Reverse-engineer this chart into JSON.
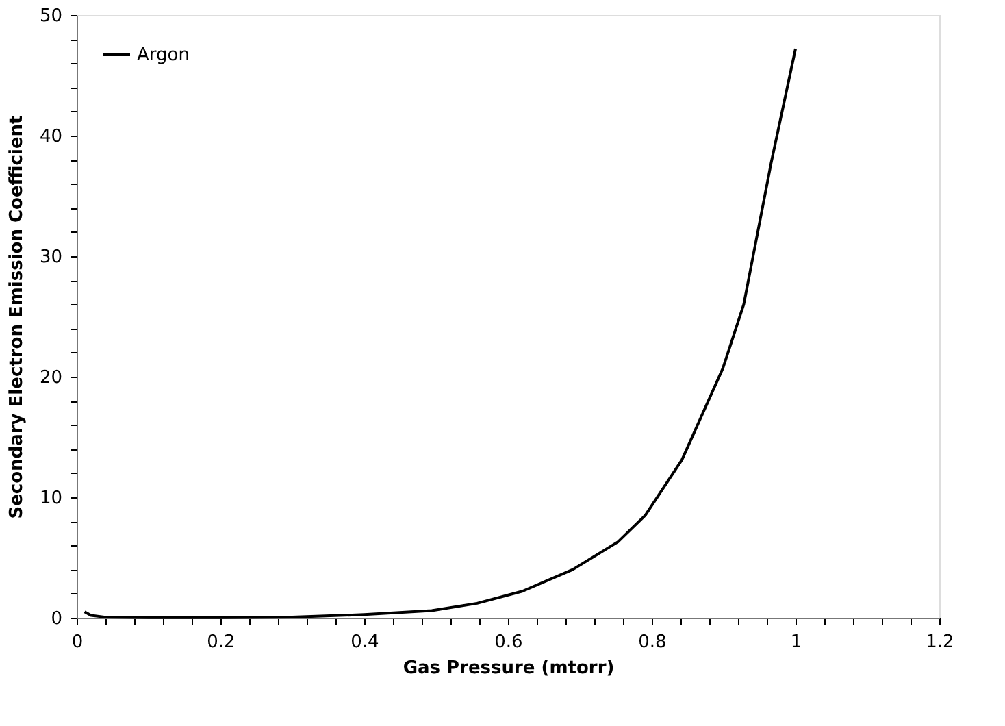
{
  "chart_data": {
    "type": "line",
    "xlabel": "Gas Pressure (mtorr)",
    "ylabel": "Secondary Electron Emission Coefficient",
    "series": [
      {
        "name": "Argon",
        "color": "#000000",
        "x": [
          0.011,
          0.02,
          0.04,
          0.1,
          0.2,
          0.3,
          0.4,
          0.494,
          0.557,
          0.62,
          0.69,
          0.753,
          0.791,
          0.842,
          0.899,
          0.928,
          0.966,
          1.0
        ],
        "values": [
          0.5,
          0.2,
          0.05,
          0.02,
          0.02,
          0.05,
          0.27,
          0.6,
          1.2,
          2.2,
          4.0,
          6.3,
          8.5,
          13.1,
          20.7,
          26,
          37.7,
          47.2
        ]
      }
    ],
    "xlim": [
      0,
      1.2
    ],
    "ylim": [
      0,
      50
    ],
    "xticks": [
      0,
      {
        "value": 0.04,
        "label": null
      },
      {
        "value": 0.08,
        "label": null
      },
      {
        "value": 0.12,
        "label": null
      },
      {
        "value": 0.16,
        "label": null
      },
      0.2,
      {
        "value": 0.24,
        "label": null
      },
      {
        "value": 0.28,
        "label": null
      },
      {
        "value": 0.32,
        "label": null
      },
      {
        "value": 0.36,
        "label": null
      },
      0.4,
      {
        "value": 0.44,
        "label": null
      },
      {
        "value": 0.48,
        "label": null
      },
      {
        "value": 0.52,
        "label": null
      },
      {
        "value": 0.56,
        "label": null
      },
      0.6,
      {
        "value": 0.64,
        "label": null
      },
      {
        "value": 0.68,
        "label": null
      },
      {
        "value": 0.72,
        "label": null
      },
      {
        "value": 0.76,
        "label": null
      },
      0.8,
      {
        "value": 0.84,
        "label": null
      },
      {
        "value": 0.88,
        "label": null
      },
      {
        "value": 0.92,
        "label": null
      },
      {
        "value": 0.96,
        "label": null
      },
      1,
      {
        "value": 1.04,
        "label": null
      },
      {
        "value": 1.08,
        "label": null
      },
      {
        "value": 1.12,
        "label": null
      },
      {
        "value": 1.16,
        "label": null
      },
      1.2
    ],
    "yticks": [
      0,
      {
        "value": 2,
        "label": null
      },
      {
        "value": 4,
        "label": null
      },
      {
        "value": 6,
        "label": null
      },
      {
        "value": 8,
        "label": null
      },
      10,
      {
        "value": 12,
        "label": null
      },
      {
        "value": 14,
        "label": null
      },
      {
        "value": 16,
        "label": null
      },
      {
        "value": 18,
        "label": null
      },
      20,
      {
        "value": 22,
        "label": null
      },
      {
        "value": 24,
        "label": null
      },
      {
        "value": 26,
        "label": null
      },
      {
        "value": 28,
        "label": null
      },
      30,
      {
        "value": 32,
        "label": null
      },
      {
        "value": 34,
        "label": null
      },
      {
        "value": 36,
        "label": null
      },
      {
        "value": 38,
        "label": null
      },
      40,
      {
        "value": 42,
        "label": null
      },
      {
        "value": 44,
        "label": null
      },
      {
        "value": 46,
        "label": null
      },
      {
        "value": 48,
        "label": null
      },
      50
    ],
    "grid": false,
    "legend": "top left",
    "marker": "none",
    "line_style": "solid"
  }
}
